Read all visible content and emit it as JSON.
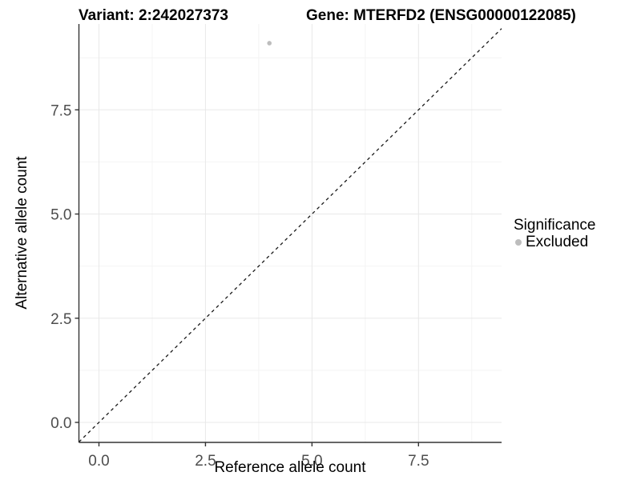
{
  "chart_data": {
    "type": "scatter",
    "title_left": "Variant: 2:242027373",
    "title_right": "Gene: MTERFD2 (ENSG00000122085)",
    "xlabel": "Reference allele count",
    "ylabel": "Alternative allele count",
    "xlim": [
      -0.47,
      9.45
    ],
    "ylim": [
      -0.48,
      9.56
    ],
    "x_major_ticks": [
      0,
      2.5,
      5,
      7.5
    ],
    "y_major_ticks": [
      0,
      2.5,
      5,
      7.5
    ],
    "x_tick_labels": [
      "0.0",
      "2.5",
      "5.0",
      "7.5"
    ],
    "y_tick_labels": [
      "0.0",
      "2.5",
      "5.0",
      "7.5"
    ],
    "x_minor_ticks": [
      1.25,
      3.75,
      6.25,
      8.75
    ],
    "y_minor_ticks": [
      1.25,
      3.75,
      6.25,
      8.75
    ],
    "grid": true,
    "points": [
      {
        "x": 4,
        "y": 9.1,
        "series": "Excluded"
      }
    ],
    "identity_line": {
      "style": "dashed",
      "color": "#1a1a1a",
      "from": -0.47,
      "to": 9.45
    },
    "legend": {
      "title": "Significance",
      "position": "right",
      "entries": [
        {
          "label": "Excluded",
          "color": "#bdbdbd"
        }
      ]
    },
    "style": {
      "point_color": "#bdbdbd",
      "axis_line_color": "#333333",
      "tick_color": "#333333",
      "tick_label_color": "#4d4d4d",
      "grid_major_color": "#e8e8e8",
      "grid_minor_color": "#f4f4f4",
      "background": "#ffffff"
    }
  }
}
